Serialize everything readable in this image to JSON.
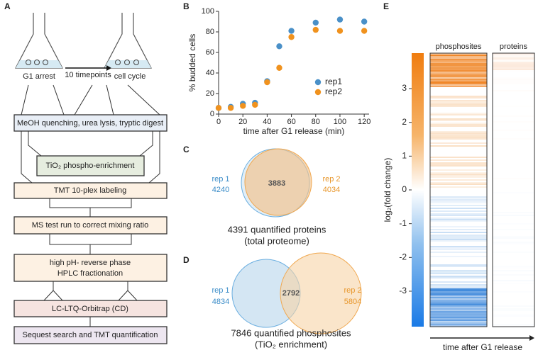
{
  "panel_labels": [
    "A",
    "B",
    "C",
    "D",
    "E"
  ],
  "workflow": {
    "flask_left": "G1 arrest",
    "arrow": "10 timepoints",
    "flask_right": "cell cycle",
    "steps": [
      "MeOH quenching, urea lysis, tryptic digest",
      "TiO₂ phospho-enrichment",
      "TMT 10-plex labeling",
      "MS test run to correct mixing ratio",
      "high pH- reverse phase",
      "HPLC fractionation",
      "LC-LTQ-Orbitrap (CD)",
      "Sequest search and TMT quantification"
    ]
  },
  "venn_proteins": {
    "left_name": "rep 1",
    "left_value": 4240,
    "overlap": 3883,
    "right_name": "rep 2",
    "right_value": 4034,
    "caption": "4391 quantified proteins",
    "subcaption": "(total proteome)"
  },
  "venn_phosphosites": {
    "left_name": "rep 1",
    "left_value": 4834,
    "overlap": 2792,
    "right_name": "rep 2",
    "right_value": 5804,
    "caption": "7846 quantified phosphosites",
    "subcaption": "(TiO₂ enrichment)"
  },
  "chart_data": [
    {
      "type": "scatter",
      "xlabel": "time after G1 release (min)",
      "ylabel": "% budded cells",
      "x": [
        0,
        10,
        20,
        30,
        40,
        50,
        60,
        80,
        100,
        120
      ],
      "series": [
        {
          "name": "rep1",
          "color": "#4a90c8",
          "values": [
            6,
            7,
            10,
            11,
            32,
            66,
            81,
            89,
            92,
            90
          ]
        },
        {
          "name": "rep2",
          "color": "#f0921e",
          "values": [
            6,
            6,
            8,
            9,
            31,
            45,
            75,
            82,
            81,
            81
          ]
        }
      ],
      "xlim": [
        0,
        124
      ],
      "xticks": [
        0,
        20,
        40,
        60,
        80,
        100,
        120
      ],
      "ylim": [
        0,
        100
      ],
      "yticks": [
        0,
        20,
        40,
        60,
        80,
        100
      ],
      "grid": false,
      "legend": "right"
    },
    {
      "type": "heatmap",
      "columns": [
        "phosphosites",
        "proteins"
      ],
      "ylabel": "log₂(fold change)",
      "xlabel": "time after G1 release",
      "ylim": [
        -4.05,
        4.05
      ],
      "yticks": [
        -3,
        -2,
        -1,
        0,
        1,
        2,
        3
      ]
    }
  ]
}
